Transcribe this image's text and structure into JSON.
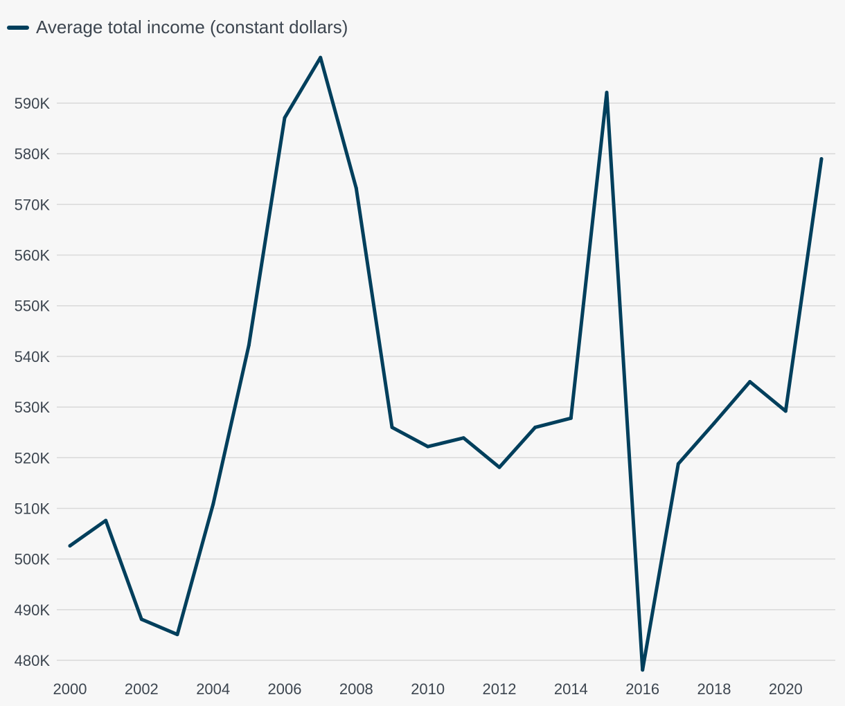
{
  "chart_data": {
    "type": "line",
    "title": "",
    "xlabel": "",
    "ylabel": "",
    "series_color": "#003f5c",
    "grid": true,
    "legend_position": "top-left",
    "y_tick_values": [
      480000,
      490000,
      500000,
      510000,
      520000,
      530000,
      540000,
      550000,
      560000,
      570000,
      580000,
      590000
    ],
    "y_tick_labels": [
      "480K",
      "490K",
      "500K",
      "510K",
      "520K",
      "530K",
      "540K",
      "550K",
      "560K",
      "570K",
      "580K",
      "590K"
    ],
    "x_tick_values": [
      2000,
      2002,
      2004,
      2006,
      2008,
      2010,
      2012,
      2014,
      2016,
      2018,
      2020
    ],
    "x_tick_labels": [
      "2000",
      "2002",
      "2004",
      "2006",
      "2008",
      "2010",
      "2012",
      "2014",
      "2016",
      "2018",
      "2020"
    ],
    "xlim": [
      2000,
      2021
    ],
    "ylim": [
      480000,
      590000
    ],
    "series": [
      {
        "name": "Average total income (constant dollars)",
        "x": [
          2000,
          2001,
          2002,
          2003,
          2004,
          2005,
          2006,
          2007,
          2008,
          2009,
          2010,
          2011,
          2012,
          2013,
          2014,
          2015,
          2016,
          2017,
          2018,
          2019,
          2020,
          2021
        ],
        "values": [
          502600,
          507600,
          488100,
          485100,
          510800,
          542200,
          587100,
          599000,
          573200,
          526000,
          522200,
          523900,
          518100,
          526000,
          527800,
          592100,
          478100,
          518800,
          526800,
          535000,
          529200,
          579000
        ]
      }
    ]
  }
}
